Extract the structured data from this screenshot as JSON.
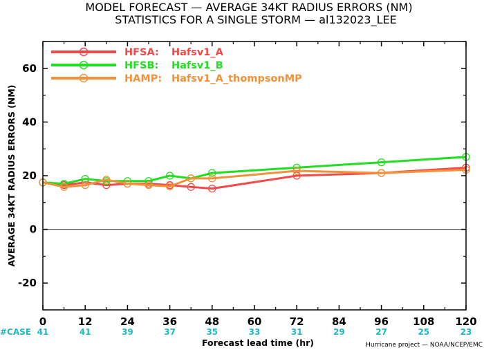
{
  "chart_data": {
    "type": "line",
    "title": "MODEL FORECAST — AVERAGE 34KT RADIUS ERRORS (NM)",
    "subtitle": "STATISTICS FOR A SINGLE STORM — al132023_LEE",
    "xlabel": "Forecast lead time (hr)",
    "ylabel": "AVERAGE 34KT RADIUS ERRORS (NM)",
    "xlim": [
      0,
      120
    ],
    "ylim": [
      -30,
      70
    ],
    "xticks": [
      0,
      12,
      24,
      36,
      48,
      60,
      72,
      84,
      96,
      108,
      120
    ],
    "yticks": [
      -20,
      0,
      20,
      40,
      60
    ],
    "grid": false,
    "legend_position": "top-left",
    "case_label": "#CASE",
    "case_counts": [
      41,
      41,
      39,
      37,
      35,
      33,
      31,
      29,
      27,
      25,
      23
    ],
    "credit": "Hurricane project — NOAA/NCEP/EMC",
    "series": [
      {
        "name": "HFSA:",
        "desc": "Hafsv1_A",
        "color": "#f04a4a",
        "x": [
          0,
          6,
          12,
          18,
          24,
          30,
          36,
          42,
          48,
          72,
          96,
          120
        ],
        "y": [
          17.5,
          16.5,
          17.5,
          16.5,
          17.0,
          17.0,
          16.5,
          15.8,
          15.2,
          20.0,
          21.0,
          23.0
        ]
      },
      {
        "name": "HFSB:",
        "desc": "Hafsv1_B",
        "color": "#22dd22",
        "x": [
          0,
          6,
          12,
          18,
          24,
          30,
          36,
          42,
          48,
          72,
          96,
          120
        ],
        "y": [
          17.5,
          17.0,
          18.8,
          18.0,
          18.0,
          18.0,
          20.0,
          19.0,
          21.0,
          23.0,
          25.0,
          27.0
        ]
      },
      {
        "name": "HAMP:",
        "desc": "Hafsv1_A_thompsonMP",
        "color": "#f0923a",
        "x": [
          0,
          6,
          12,
          18,
          24,
          30,
          36,
          42,
          48,
          72,
          96,
          120
        ],
        "y": [
          17.5,
          15.8,
          16.5,
          18.5,
          17.0,
          16.5,
          16.0,
          19.0,
          19.0,
          21.8,
          21.0,
          22.2
        ]
      }
    ]
  }
}
